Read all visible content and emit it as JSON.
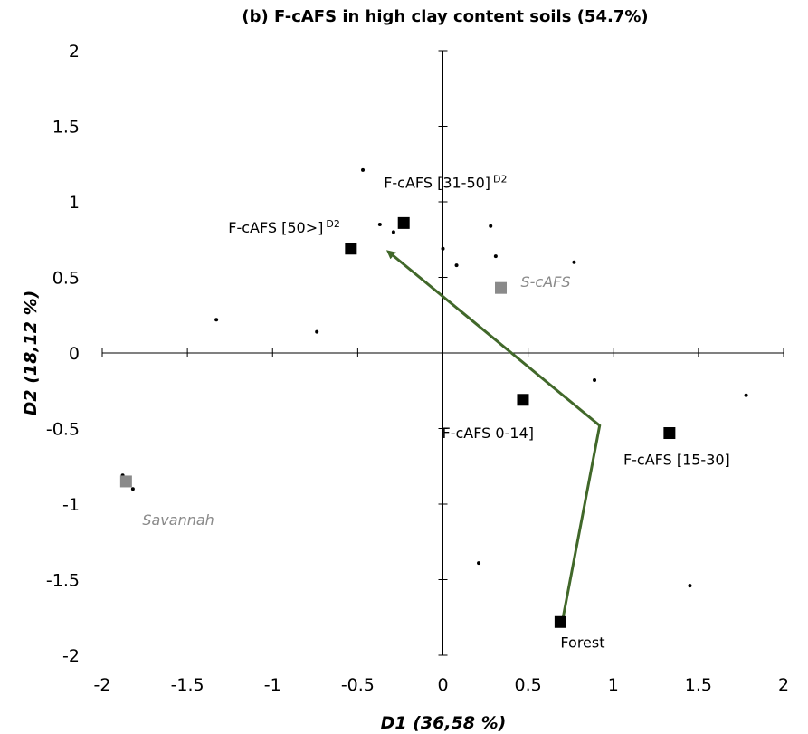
{
  "chart_data": {
    "type": "scatter",
    "title": "(b) F-cAFS in high clay content soils (54.7%)",
    "xlabel": "D1 (36,58 %)",
    "ylabel": "D2 (18,12 %)",
    "xlim": [
      -2,
      2
    ],
    "ylim": [
      -2,
      2
    ],
    "xticks": [
      "-2",
      "-1.5",
      "-1",
      "-0.5",
      "0",
      "0.5",
      "1",
      "1.5",
      "2"
    ],
    "yticks": [
      "2",
      "1.5",
      "1",
      "0.5",
      "0",
      "-0.5",
      "-1",
      "-1.5",
      "-2"
    ],
    "grid": false,
    "observations": [
      {
        "x": -0.47,
        "y": 1.21
      },
      {
        "x": -0.37,
        "y": 0.85
      },
      {
        "x": -0.29,
        "y": 0.8
      },
      {
        "x": 0.0,
        "y": 0.69
      },
      {
        "x": 0.08,
        "y": 0.58
      },
      {
        "x": 0.28,
        "y": 0.84
      },
      {
        "x": 0.31,
        "y": 0.64
      },
      {
        "x": 0.77,
        "y": 0.6
      },
      {
        "x": -1.33,
        "y": 0.22
      },
      {
        "x": -0.74,
        "y": 0.14
      },
      {
        "x": 0.89,
        "y": -0.18
      },
      {
        "x": 1.78,
        "y": -0.28
      },
      {
        "x": -1.88,
        "y": -0.81
      },
      {
        "x": -1.82,
        "y": -0.9
      },
      {
        "x": 0.21,
        "y": -1.39
      },
      {
        "x": 1.45,
        "y": -1.54
      }
    ],
    "groups": [
      {
        "label": "F-cAFS [50>]",
        "sup": "D2",
        "x": -0.54,
        "y": 0.69,
        "color": "#000000"
      },
      {
        "label": "F-cAFS [31-50]",
        "sup": "D2",
        "x": -0.23,
        "y": 0.86,
        "color": "#000000"
      },
      {
        "label": "S-cAFS",
        "sup": "",
        "x": 0.34,
        "y": 0.43,
        "color": "#8a8a8a"
      },
      {
        "label": "F-cAFS 0-14]",
        "sup": "",
        "x": 0.47,
        "y": -0.31,
        "color": "#000000"
      },
      {
        "label": "F-cAFS  [15-30]",
        "sup": "",
        "x": 1.33,
        "y": -0.53,
        "color": "#000000"
      },
      {
        "label": "Savannah",
        "sup": "",
        "x": -1.86,
        "y": -0.85,
        "color": "#8a8a8a"
      },
      {
        "label": "Forest",
        "sup": "",
        "x": 0.69,
        "y": -1.78,
        "color": "#000000"
      }
    ],
    "trajectory": {
      "color": "#41682a",
      "points": [
        {
          "x": 0.7,
          "y": -1.78
        },
        {
          "x": 0.92,
          "y": -0.48
        },
        {
          "x": -0.32,
          "y": 0.67
        }
      ]
    }
  }
}
